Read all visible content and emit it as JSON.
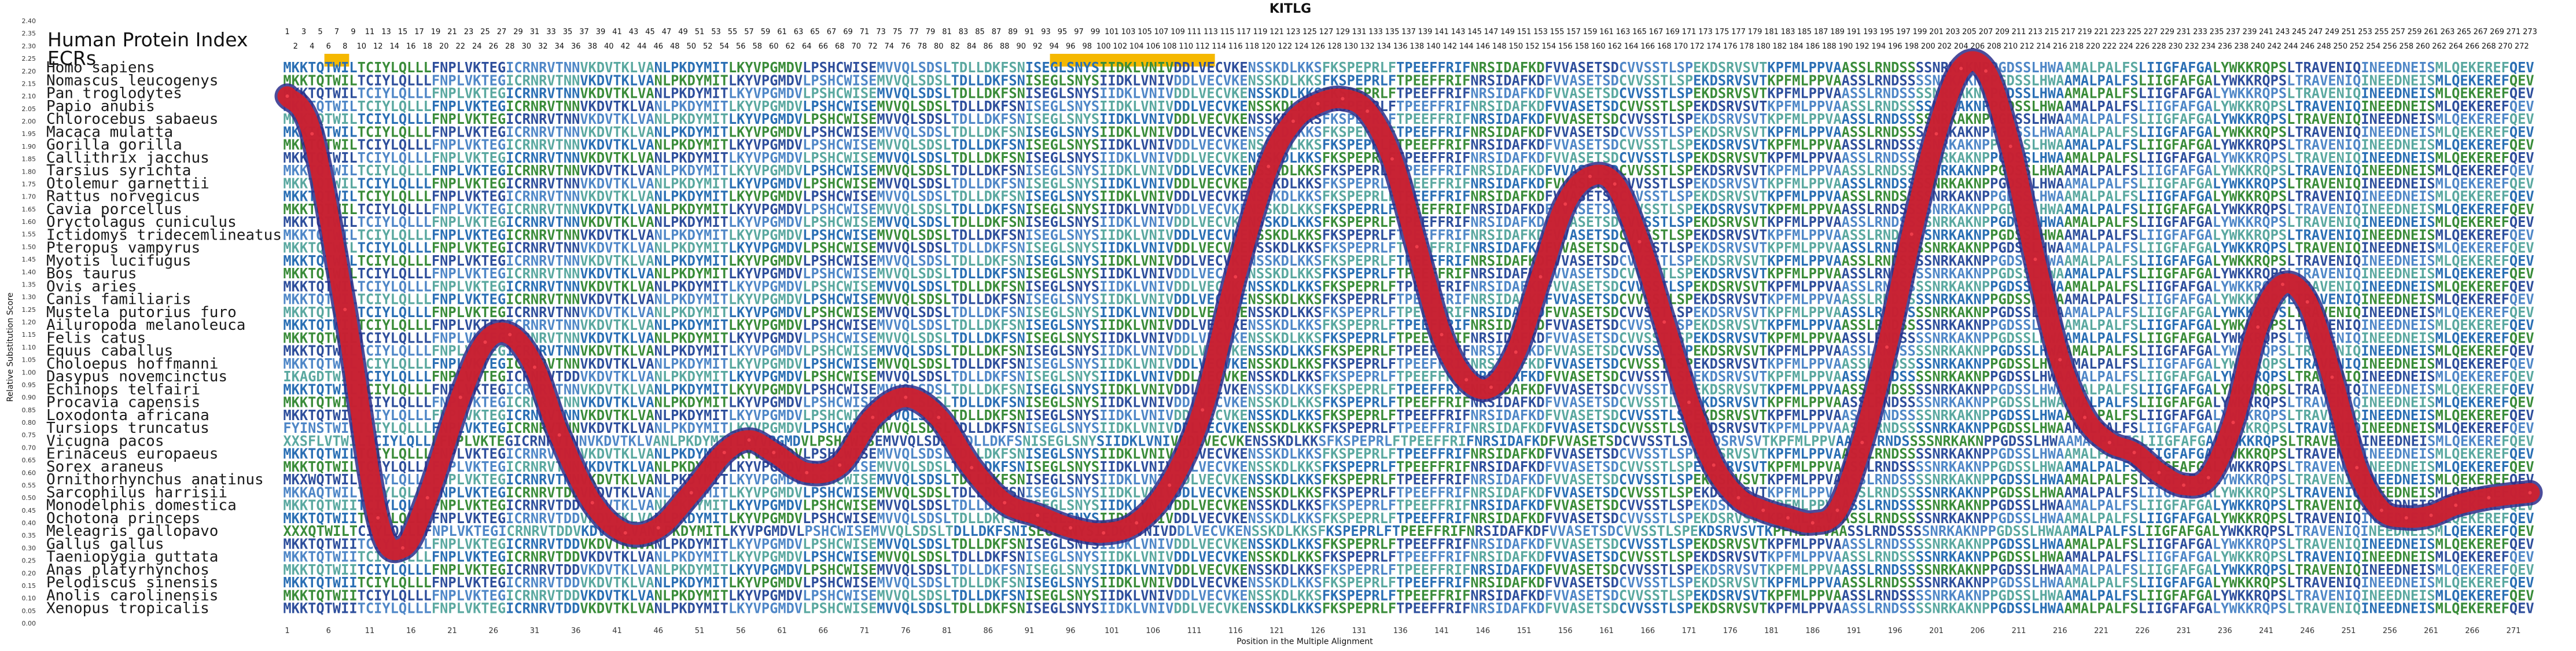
{
  "chart_data": {
    "type": "line",
    "title": "KITLG",
    "xlabel": "Position in the Multiple Alignment",
    "ylabel": "Relative Substitution Score",
    "ylim": [
      0.0,
      2.4
    ],
    "xlim": [
      1,
      273
    ],
    "ytick_step": 0.05,
    "xtick_step": 5,
    "grid": false,
    "legend": null,
    "header_labels": {
      "index": "Human Protein Index",
      "ecrs": "ECRs"
    },
    "ecr_ranges": [
      [
        6,
        8
      ],
      [
        94,
        113
      ]
    ],
    "ecr_color": "#f5b800",
    "line_color": "#d21f2b",
    "line_edge_color": "#2b2e8a",
    "series": [
      {
        "x": [
          1,
          4,
          8,
          12,
          15,
          18,
          22,
          25,
          28,
          31,
          34,
          38,
          42,
          46,
          50,
          54,
          57,
          60,
          64,
          68,
          72,
          76,
          80,
          84,
          88,
          92,
          96,
          100,
          104,
          108,
          112,
          116,
          120,
          123,
          126,
          129,
          132,
          135,
          138,
          141,
          144,
          147,
          150,
          153,
          156,
          159,
          162,
          165,
          168,
          171,
          174,
          177,
          180,
          183,
          186,
          189,
          192,
          195,
          198,
          201,
          204,
          207,
          210,
          213,
          216,
          219,
          222,
          225,
          228,
          231,
          234,
          237,
          240,
          243,
          246,
          249,
          252,
          255,
          258,
          261,
          264,
          268,
          273
        ],
        "values": [
          2.1,
          1.95,
          1.25,
          0.42,
          0.3,
          0.5,
          0.9,
          1.12,
          1.15,
          1.02,
          0.75,
          0.48,
          0.36,
          0.38,
          0.52,
          0.68,
          0.73,
          0.68,
          0.6,
          0.63,
          0.82,
          0.9,
          0.82,
          0.62,
          0.48,
          0.43,
          0.38,
          0.36,
          0.4,
          0.55,
          0.85,
          1.38,
          1.82,
          2.0,
          2.07,
          2.09,
          2.04,
          1.85,
          1.5,
          1.15,
          0.97,
          0.94,
          1.08,
          1.38,
          1.67,
          1.78,
          1.75,
          1.52,
          1.2,
          0.88,
          0.63,
          0.5,
          0.45,
          0.42,
          0.4,
          0.45,
          0.72,
          1.1,
          1.55,
          1.95,
          2.21,
          2.2,
          1.9,
          1.45,
          1.05,
          0.82,
          0.72,
          0.68,
          0.6,
          0.55,
          0.58,
          0.8,
          1.18,
          1.35,
          1.28,
          0.98,
          0.62,
          0.45,
          0.42,
          0.43,
          0.47,
          0.5,
          0.52
        ]
      }
    ]
  },
  "species": [
    "Homo sapiens",
    "Nomascus leucogenys",
    "Pan troglodytes",
    "Papio anubis",
    "Chlorocebus sabaeus",
    "Macaca mulatta",
    "Gorilla gorilla",
    "Callithrix jacchus",
    "Tarsius syrichta",
    "Otolemur garnettii",
    "Rattus norvegicus",
    "Cavia porcellus",
    "Oryctolagus cuniculus",
    "Ictidomys tridecemlineatus",
    "Pteropus vampyrus",
    "Myotis lucifugus",
    "Bos taurus",
    "Ovis aries",
    "Canis familiaris",
    "Mustela putorius furo",
    "Ailuropoda melanoleuca",
    "Felis catus",
    "Equus caballus",
    "Choloepus hoffmanni",
    "Dasypus novemcinctus",
    "Echinops telfairi",
    "Procavia capensis",
    "Loxodonta africana",
    "Tursiops truncatus",
    "Vicugna pacos",
    "Erinaceus europaeus",
    "Sorex araneus",
    "Ornithorhynchus anatinus",
    "Sarcophilus harrisii",
    "Monodelphis domestica",
    "Ochotona princeps",
    "Meleagris gallopavo",
    "Gallus gallus",
    "Taeniopygia guttata",
    "Anas platyrhynchos",
    "Pelodiscus sinensis",
    "Anolis carolinensis",
    "Xenopus tropicalis"
  ],
  "alignment": [
    "MKKTQTWILTCIYLQLLLFNPLVKTEGICRNRVTNNVKDVTKLVANLPKDYMITLKYVPGMDVLPSHCWISEMVVQLSDSLTDLLDKFSNISEGLSNYSIIDKLVNIVDDLVECVKENSSKDLKKSFKSPEPRLFTPEEFFRIFNRSIDAFKDFVVASETSDCVVSSTLSPEKDSRVSVTKPFMLPPVAASSLRNDSSSSNRKAKNPPGDSSLHWAAMALPALFSLIIGFAFGALYWKKRQPSLTRAVENIQINEEDNEISMLQEKEREFQEV",
    "MKKTQTWILTCIYLQLLLFNPLVKTEGICRNRVTNNVKDVTKLVANLPKDYMITLKYVPGMDVLPSHCWISEMVVQLSDSLTDLLDKFSNISEGLSNYSIIDKLVNIVDDLVECVKENSSKDLKKSFKSPEPRLFTPEEFFRIFNRSIDAFKDFVVASETSDCVVSSTLSPEKDSRVSVTKPFMLPPVAASSLRNDSSSSNRKAKNPPGDSSLHWAAMALPALFSLIIGFAFGALYWKKRQPSLTRAVENIQINEEDNEISMLQEKEREFQEV",
    "MKKTQTWILTCIYLQLLLFNPLVKTEGICRNRVTNNVKDVTKLVANLPKDYMITLKYVPGMDVLPSHCWISEMVVQLSDSLTDLLDKFSNISEGLSNYSIIDKLVNIVDDLVECVKENSSKDLKKSFKSPEPRLFTPEEFFRIFNRSIDAFKDFVVASETSDCVVSSTLSPEKDSRVSVTKPFMLPPVAASSLRNDSSSSNRKAKNPPGDSSLHWAAMALPALFSLIIGFAFGALYWKKRQPSLTRAVENIQINEEDNEISMLQEKEREFQEV",
    "MKKTQTWILTCIYLQLLLFNPLVKTEGICRNRVTNNVKDVTKLVANLPKDYMITLKYVPGMDVLPSHCWISEMVVQLSDSLTDLLDKFSNISEGLSNYSIIDKLVNIVDDLVECVKENSSKDLKKSFKSPEPRLFTPEEFFRIFNRSIDAFKDFVVASETSDCVVSSTLSPEKDSRVSVTKPFMLPPVAASSLRNDSSSSNRKAKNPPGDSSLHWAAMALPALFSLIIGFAFGALYWKKRQPSLTRAVENIQINEEDNEISMLQEKEREFQEV",
    "MKKTQTWILTCIYLQLLLFNPLVKTEGICRNRVTNNVKDVTKLVANLPKDYMITLKYVPGMDVLPSHCWISEMVVQLSDSLTDLLDKFSNISEGLSNYSIIDKLVNIVDDLVECVKENSSKDLKKSFKSPEPRLFTPEEFFRIFNRSIDAFKDFVVASETSDCVVSSTLSPEKDSRVSVTKPFMLPPVAASSLRNDSSSSNRKAKNPPGDSSLHWAAMALPALFSLIIGFAFGALYWKKRQPSLTRAVENIQINEEDNEISMLQEKEREFQEV",
    "MKKTQTWILTCIYLQLLLFNPLVKTEGICRNRVTNNVKDVTKLVANLPKDYMITLKYVPGMDVLPSHCWISEMVVQLSDSLTDLLDKFSNISEGLSNYSIIDKLVNIVDDLVECVKENSSKDLKKSFKSPEPRLFTPEEFFRIFNRSIDAFKDFVVASETSDCVVSSTLSPEKDSRVSVTKPFMLPPVAASSLRNDSSSSNRKAKNPPGDSSLHWAAMALPALFSLIIGFAFGALYWKKRQPSLTRAVENIQINEEDNEISMLQEKEREFQEV",
    "MKKTQTWILTCIYLQLLLFNPLVKTEGICRNRVTNNVKDVTKLVANLPKDYMITLKYVPGMDVLPSHCWISEMVVQLSDSLTDLLDKFSNISEGLSNYSIIDKLVNIVDDLVECVKENSSKDLKKSFKSPEPRLFTPEEFFRIFNRSIDAFKDFVVASETSDCVVSSTLSPEKDSRVSVTKPFMLPPVAASSLRNDSSSSNRKAKNPPGDSSLHWAAMALPALFSLIIGFAFGALYWKKRQPSLTRAVENIQINEEDNEISMLQEKEREFQEV",
    "MKKTQTWILTCIYLQLLLFNPLVKTEGICRNRVTNNVKDVTKLVANLPKDYMITLKYVPGMDVLPSHCWISEMVVQLSDSLTDLLDKFSNISEGLSNYSIIDKLVNIVDDLVECVKENSSKDLKKSFKSPEPRLFTPEEFFRIFNRSIDAFKDFVVASETSDCVVSSTLSPEKDSRVSVTKPFMLPPVAASSLRNDSSSSNRKAKNPPGDSSLHWAAMALPALFSLIIGFAFGALYWKKRQPSLTRAVENIQINEEDNEISMLQEKEREFQEV",
    "MKKTQTWILTCIYLQLLLFNPLVKTEGICRNRVTNNVKDVTKLVANLPKDYMITLKYVPGMDVLPSHCWISEMVVQLSDSLTDLLDKFSNISEGLSNYSIIDKLVNIVDDLVECVKENSSKDLKKSFKSPEPRLFTPEEFFRIFNRSIDAFKDFVVASETSDCVVSSTLSPEKDSRVSVTKPFMLPPVAASSLRNDSSSSNRKAKNPPGDSSLHWAAMALPALFSLIIGFAFGALYWKKRQPSLTRAVENIQINEEDNEISMLQEKEREFQEV",
    "MKKTQTWILTCIYLQLLLFNPLVKTEGICRNRVTNNVKDVTKLVANLPKDYMITLKYVPGMDVLPSHCWISEMVVQLSDSLTDLLDKFSNISEGLSNYSIIDKLVNIVDDLVECVKENSSKDLKKSFKSPEPRLFTPEEFFRIFNRSIDAFKDFVVASETSDCVVSSTLSPEKDSRVSVTKPFMLPPVAASSLRNDSSSSNRKAKNPPGDSSLHWAAMALPALFSLIIGFAFGALYWKKRQPSLTRAVENIQINEEDNEISMLQEKEREFQEV",
    "MKKTQTWILTCIYLQLLLFNPLVKTEGICRNRVTNNVKDVTKLVANLPKDYMITLKYVPGMDVLPSHCWISEMVVQLSDSLTDLLDKFSNISEGLSNYSIIDKLVNIVDDLVECVKENSSKDLKKSFKSPEPRLFTPEEFFRIFNRSIDAFKDFVVASETSDCVVSSTLSPEKDSRVSVTKPFMLPPVAASSLRNDSSSSNRKAKNPPGDSSLHWAAMALPALFSLIIGFAFGALYWKKRQPSLTRAVENIQINEEDNEISMLQEKEREFQEV",
    "MKKTQTWILTCIYLQLLLFNPLVKTEGICRNRVTNNVKDVTKLVANLPKDYMITLKYVPGMDVLPSHCWISEMVVQLSDSLTDLLDKFSNISEGLSNYSIIDKLVNIVDDLVECVKENSSKDLKKSFKSPEPRLFTPEEFFRIFNRSIDAFKDFVVASETSDCVVSSTLSPEKDSRVSVTKPFMLPPVAASSLRNDSSSSNRKAKNPPGDSSLHWAAMALPALFSLIIGFAFGALYWKKRQPSLTRAVENIQINEEDNEISMLQEKEREFQEV",
    "MKKTQTWILTCIYLQLLLFNPLVKTEGICRNRVTNNVKDVTKLVANLPKDYMITLKYVPGMDVLPSHCWISEMVVQLSDSLTDLLDKFSNISEGLSNYSIIDKLVNIVDDLVECVKENSSKDLKKSFKSPEPRLFTPEEFFRIFNRSIDAFKDFVVASETSDCVVSSTLSPEKDSRVSVTKPFMLPPVAASSLRNDSSSSNRKAKNPPGDSSLHWAAMALPALFSLIIGFAFGALYWKKRQPSLTRAVENIQINEEDNEISMLQEKEREFQEV",
    "MKKTQTWILTCIYLQLLLFNPLVKTEGICRNRVTNNVKDVTKLVANLPKDYMITLKYVPGMDVLPSHCWISEMVVQLSDSLTDLLDKFSNISEGLSNYSIIDKLVNIVDDLVECVKENSSKDLKKSFKSPEPRLFTPEEFFRIFNRSIDAFKDFVVASETSDCVVSSTLSPEKDSRVSVTKPFMLPPVAASSLRNDSSSSNRKAKNPPGDSSLHWAAMALPALFSLIIGFAFGALYWKKRQPSLTRAVENIQINEEDNEISMLQEKEREFQEV",
    "MKKTQTWILTCIYLQLLLFNPLVKTEGICRNRVTNNVKDVTKLVANLPKDYMITLKYVPGMDVLPSHCWISEMVVQLSDSLTDLLDKFSNISEGLSNYSIIDKLVNIVDDLVECVKENSSKDLKKSFKSPEPRLFTPEEFFRIFNRSIDAFKDFVVASETSDCVVSSTLSPEKDSRVSVTKPFMLPPVAASSLRNDSSSSNRKAKNPPGDSSLHWAAMALPALFSLIIGFAFGALYWKKRQPSLTRAVENIQINEEDNEISMLQEKEREFQEV",
    "MKKTQTWILTCIYLQLLLFNPLVKTEGICRNRVTNNVKDVTKLVANLPKDYMITLKYVPGMDVLPSHCWISEMVVQLSDSLTDLLDKFSNISEGLSNYSIIDKLVNIVDDLVECVKENSSKDLKKSFKSPEPRLFTPEEFFRIFNRSIDAFKDFVVASETSDCVVSSTLSPEKDSRVSVTKPFMLPPVAASSLRNDSSSSNRKAKNPPGDSSLHWAAMALPALFSLIIGFAFGALYWKKRQPSLTRAVENIQINEEDNEISMLQEKEREFQEV",
    "MKKTQTWILTCIYLQLLLFNPLVKTEGICRNRVTNNVKDVTKLVANLPKDYMITLKYVPGMDVLPSHCWISEMVVQLSDSLTDLLDKFSNISEGLSNYSIIDKLVNIVDDLVECVKENSSKDLKKSFKSPEPRLFTPEEFFRIFNRSIDAFKDFVVASETSDCVVSSTLSPEKDSRVSVTKPFMLPPVAASSLRNDSSSSNRKAKNPPGDSSLHWAAMALPALFSLIIGFAFGALYWKKRQPSLTRAVENIQINEEDNEISMLQEKEREFQEV",
    "MKKTQTWILTCIYLQLLLFNPLVKTEGICRNRVTNNVKDVTKLVANLPKDYMITLKYVPGMDVLPSHCWISEMVVQLSDSLTDLLDKFSNISEGLSNYSIIDKLVNIVDDLVECVKENSSKDLKKSFKSPEPRLFTPEEFFRIFNRSIDAFKDFVVASETSDCVVSSTLSPEKDSRVSVTKPFMLPPVAASSLRNDSSSSNRKAKNPPGDSSLHWAAMALPALFSLIIGFAFGALYWKKRQPSLTRAVENIQINEEDNEISMLQEKEREFQEV",
    "MKKTQTWILTCIYLQLLLFNPLVKTEGICRNRVTNNVKDVTKLVANLPKDYMITLKYVPGMDVLPSHCWISEMVVQLSDSLTDLLDKFSNISEGLSNYSIIDKLVNIVDDLVECVKENSSKDLKKSFKSPEPRLFTPEEFFRIFNRSIDAFKDFVVASETSDCVVSSTLSPEKDSRVSVTKPFMLPPVAASSLRNDSSSSNRKAKNPPGDSSLHWAAMALPALFSLIIGFAFGALYWKKRQPSLTRAVENIQINEEDNEISMLQEKEREFQEV",
    "MKKTQTWILTCIYLQLLLFNPLVKTEGICRNRVTNNVKDVTKLVANLPKDYMITLKYVPGMDVLPSHCWISEMVVQLSDSLTDLLDKFSNISEGLSNYSIIDKLVNIVDDLVECVKENSSKDLKKSFKSPEPRLFTPEEFFRIFNRSIDAFKDFVVASETSDCVVSSTLSPEKDSRVSVTKPFMLPPVAASSLRNDSSSSNRKAKNPPGDSSLHWAAMALPALFSLIIGFAFGALYWKKRQPSLTRAVENIQINEEDNEISMLQEKEREFQEV",
    "MKKTQTWILTCIYLQLLLFNPLVKTEGICRNRVTNNVKDVTKLVANLPKDYMITLKYVPGMDVLPSHCWISEMVVQLSDSLTDLLDKFSNISEGLSNYSIIDKLVNIVDDLVECVKENSSKDLKKSFKSPEPRLFTPEEFFRIFNRSIDAFKDFVVASETSDCVVSSTLSPEKDSRVSVTKPFMLPPVAASSLRNDSSSSNRKAKNPPGDSSLHWAAMALPALFSLIIGFAFGALYWKKRQPSLTRAVENIQINEEDNEISMLQEKEREFQEV",
    "MKKTQTWILTCIYLQLLLFNPLVKTEGICRNRVTNNVKDVTKLVANLPKDYMITLKYVPGMDVLPSHCWISEMVVQLSDSLTDLLDKFSNISEGLSNYSIIDKLVNIVDDLVECVKENSSKDLKKSFKSPEPRLFTPEEFFRIFNRSIDAFKDFVVASETSDCVVSSTLSPEKDSRVSVTKPFMLPPVAASSLRNDSSSSNRKAKNPPGDSSLHWAAMALPALFSLIIGFAFGALYWKKRQPSLTRAVENIQINEEDNEISMLQEKEREFQEV",
    "MKKTQTWILTCIYLQLLLFNPLVKTEGICRNRVTNNVKDVTKLVANLPKDYMITLKYVPGMDVLPSHCWISEMVVQLSDSLTDLLDKFSNISEGLSNYSIIDKLVNIVDDLVECVKENSSKDLKKSFKSPEPRLFTPEEFFRIFNRSIDAFKDFVVASETSDCVVSSTLSPEKDSRVSVTKPFMLPPVAASSLRNDSSSSNRKAKNPPGDSSLHWAAMALPALFSLIIGFAFGALYWKKRQPSLTRAVENIQINEEDNEISMLQEKEREFQEV",
    "MKKTQTWILTCIYLQLLLFNPLVKTEGICRNRVTNNVKDVTKLVANLPKDYMITLKYVPGMDVLPSHCWISEMVVQLSDSLTDLLDKFSNISEGLSNYSIIDKLVNIVDDLVECVKENSSKDLKKSFKSPEPRLFTPEEFFRIFNRSIDAFKDFVVASETSDCVVSSTLSPEKDSRVSVTKPFMLPPVAASSLRNDSSSSNRKAKNPPGDSSLHWAAMALPALFSLIIGFAFGALYWKKRQPSLTRAVENIQINEEDNEISMLQEKEREFQEV",
    "IKAGDTWILTCIYLQLLLFNPLVKTEGICRNRVTDDVKDVTKLVANLPKDYMITLKYVPGMDVLPSHCWISEMVVQLSDSLTDLLDKFSNISEGLSNYSIIDKLVNIVDDLVECVKENSSKDLKKSFKSPEPRLFTPEEFFRIFNRSIDAFKDFVVASETSDCVVSSTLSPEKDSRVSVTKPFMLPPVAASSLRNDSSSSNRKAKNPPGDSSLHWAAMALPALFSLIIGFAFGALYWKKRQPSLTRAVENIQINEEDNEISMLQEKEREFQEV",
    "MKKTQTWILTCIYLQLLLFNPLVKTEGICRNRVTNNVKDVTKLVANLPKDYMITLKYVPGMDVLPSHCWISEMVVQLSDSLTDLLDKFSNISEGLSNYSIIDKLVNIVDDLVECVKENSSKDLKKSFKSPEPRLFTPEEFFRIFNRSIDAFKDFVVASETSDCVVSSTLSPEKDSRVSVTKPFMLPPVAASSLRNDSSSSNRKAKNPPGDSSLHWAAMALPALFSLIIGFAFGALYWKKRQPSLTRAVENIQINEEDNEISMLQEKEREFQEV",
    "MKKTQTWILTCIYLQLLLFNPLVKTEGICRNRVTNNVKDVTKLVANLPKDYMITLKYVPGMDVLPSHCWISEMVVQLSDSLTDLLDKFSNISEGLSNYSIIDKLVNIVDDLVECVKENSSKDLKKSFKSPEPRLFTPEEFFRIFNRSIDAFKDFVVASETSDCVVSSTLSPEKDSRVSVTKPFMLPPVAASSLRNDSSSSNRKAKNPPGDSSLHWAAMALPALFSLIIGFAFGALYWKKRQPSLTRAVENIQINEEDNEISMLQEKEREFQEV",
    "MKKTQTWILTCIYLQLLLFNPLVKTEGICRNRVTNNVKDVTKLVANLPKDYMITLKYVPGMDVLPSHCWISEMVVQLSDSLTDLLDKFSNISEGLSNYSIIDKLVNIVDDLVECVKENSSKDLKKSFKSPEPRLFTPEEFFRIFNRSIDAFKDFVVASETSDCVVSSTLSPEKDSRVSVTKPFMLPPVAASSLRNDSSSSNRKAKNPPGDSSLHWAAMALPALFSLIIGFAFGALYWKKRQPSLTRAVENIQINEEDNEISMLQEKEREFQEV",
    "FYINSTWILTCIYLQLLLFNPLVKTEGICRNRVTNNVKDVTKLVANLPKDYMITLKYVPGMDVLPSHCWISEMVVQLSDSLTDLLDKFSNISEGLSNYSIIDKLVNIVDDLVECVKENSSKDLKKSFKSPEPRLFTPEEFFRIFNRSIDAFKDFVVASETSDCVVSSTLSPEKDSRVSVTKPFMLPPVAASSLRNDSSSSNRKAKNPPGDSSLHWAAMALPALFSLIIGFAFGALYWKKRQPSLTRAVENIQINEEDNEISMLQEKEREFQEV",
    "XXSFLVTWILTCIYLQLLLFNPLVKTEGICRNRVTNNVKDVTKLVANLPKDYMITLKYVPGMDVLPSHCWISEMVVQLSDSLTDLLDKFSNISEGLSNYSIIDKLVNIVDDLVECVKENSSKDLKKSFKSPEPRLFTPEEFFRIFNRSIDAFKDFVVASETSDCVVSSTLSPEKDSRVSVTKPFMLPPVAASSLRNDSSSSNRKAKNPPGDSSLHWAAMALPALFSLIIGFAFGALYWKKRQPSLTRAVENIQINEEDNEISMLQEKEREFQEV",
    "MKKTQTWILTCIYLQLLLFNPLVKTEGICRNRVTNNVKDVTKLVANLPKDYMITLKYVPGMDVLPSHCWISEMVVQLSDSLTDLLDKFSNISEGLSNYSIIDKLVNIVDDLVECVKENSSKDLKKSFKSPEPRLFTPEEFFRIFNRSIDAFKDFVVASETSDCVVSSTLSPEKDSRVSVTKPFMLPPVAASSLRNDSSSSNRKAKNPPGDSSLHWAAMALPALFSLIIGFAFGALYWKKRQPSLTRAVENIQINEEDNEISMLQEKEREFQEV",
    "MKKTQTWILTCIYLQLLLFNPLVKTEGICRNRVTNNVKDVTKLVANLPKDYMITLKYVPGMDVLPSHCWISEMVVQLSDSLTDLLDKFSNISEGLSNYSIIDKLVNIVDDLVECVKENSSKDLKKSFKSPEPRLFTPEEFFRIFNRSIDAFKDFVVASETSDCVVSSTLSPEKDSRVSVTKPFMLPPVAASSLRNDSSSSNRKAKNPPGDSSLHWAAMALPALFSLIIGFAFGALYWKKRQPSLTRAVENIQINEEDNEISMLQEKEREFQEV",
    "MKXWQTWILTCIYLQLLLFNPLVKTEGICRNRVTNNVKDVTKLVANLPKDYMITLKYVPGMDVLPSHCWISEMVVQLSDSLTDLLDKFSNISEGLSNYSIIDKLVNIVDDLVECVKENSSKDLKKSFKSPEPRLFTPEEFFRIFNRSIDAFKDFVVASETSDCVVSSTLSPEKDSRVSVTKPFMLPPVAASSLRNDSSSSNRKAKNPPGDSSLHWAAMALPALFSLIIGFAFGALYWKKRQPSLTRAVENIQINEEDNEISMLQEKEREFQEV",
    "MKKAQTWILTCIYLQLLLFNPLVKTEGICRNRVTDDVKDVTKLVANLPKDYMITLKYVPGMDVLPSHCWISEMVVQLSDSLTDLLDKFSNISEGLSNYSIIDKLVNIVDDLVECVKENSSKDLKKSFKSPEPRLFTPEEFFRIFNRSIDAFKDFVVASETSDCVVSSTLSPEKDSRVSVTKPFMLPPVAASSLRNDSSSSNRKAKNPPGDSSLHWAAMALPALFSLIIGFAFGALYWKKRQPSLTRAVENIQINEEDNEISMLQEKEREFQEV",
    "MKKTQTWIITCIYLQLLLFNPLVKTEGICRNRVTDDVKDVTKLVANLPKDYMITLKYVPGMDVLPSHCWISEMVVQLSDSLTDLLDKFSNISEGLSNYSIIDKLVNIVDDLVECVKENSSKDLKKSFKSPEPRLFTPEEFFRIFNRSIDAFKDFVVASETSDCVVSSTLSPEKDSRVSVTKPFMLPPVAASSLRNDSSSSNRKAKNPPGDSSLHWAAMALPALFSLIIGFAFGALYWKKRQPSLTRAVENIQINEEDNEISMLQEKEREFQEV",
    "MKKTQTWIITCIYLQLLLFNPLVKTEGICRNRVTDDVKDVTKLVANLPKDYMITLKYVPGMDVLPSHCWISEMVVQLSDSLTDLLDKFSNISEGLSNYSIIDKLVNIVDDLVECVKENSSKDLKKSFKSPEPRLFTPEEFFRIFNRSIDAFKDFVVASETSDCVVSSTLSPEKDSRVSVTKPFMLPPVAASSLRNDSSSSNRKAKNPPGDSSLHWAAMALPALFSLIIGFAFGALYWKKRQPSLTRAVENIQINEEDNEISMLQEKEREFQEV",
    "XXXQTWILTCIYLQLLLFNPLVKTEGICRNRVTDDVKDVTKLVANLPKDYMITLKYVPGMDVLPSHCWISEMVVQLSDSLTDLLDKFSNISEGLSNYSIIDKLVNIVDDLVECVKENSSKDLKKSFKSPEPRLFTPEEFFRIFNRSIDAFKDFVVASETSDCVVSSTLSPEKDSRVSVTKPFMLPPVAASSLRNDSSSSNRKAKNPPGDSSLHWAAMALPALFSLIIGFAFGALYWKKRQPSLTRAVENIQINEEDNEISMLQEKEREFQEV",
    "MKKTQTWIITCIYLQLLLFNPLVKTEGICRNRVTDDVKDVTKLVANLPKDYMITLKYVPGMDVLPSHCWISEMVVQLSDSLTDLLDKFSNISEGLSNYSIIDKLVNIVDDLVECVKENSSKDLKKSFKSPEPRLFTPEEFFRIFNRSIDAFKDFVVASETSDCVVSSTLSPEKDSRVSVTKPFMLPPVAASSLRNDSSSSNRKAKNPPGDSSLHWAAMALPALFSLIIGFAFGALYWKKRQPSLTRAVENIQINEEDNEISMLQEKEREFQEV",
    "MKKTQTWIITCIYLQLLLFNPLVKTEGICRNRVTDDVKDVTKLVANLPKDYMITLKYVPGMDVLPSHCWISEMVVQLSDSLTDLLDKFSNISEGLSNYSIIDKLVNIVDDLVECVKENSSKDLKKSFKSPEPRLFTPEEFFRIFNRSIDAFKDFVVASETSDCVVSSTLSPEKDSRVSVTKPFMLPPVAASSLRNDSSSSNRKAKNPPGDSSLHWAAMALPALFSLIIGFAFGALYWKKRQPSLTRAVENIQINEEDNEISMLQEKEREFQEV",
    "MKKTQTWIITCIYLQLLLFNPLVKTEGICRNRVTDDVKDVTKLVANLPKDYMITLKYVPGMDVLPSHCWISEMVVQLSDSLTDLLDKFSNISEGLSNYSIIDKLVNIVDDLVECVKENSSKDLKKSFKSPEPRLFTPEEFFRIFNRSIDAFKDFVVASETSDCVVSSTLSPEKDSRVSVTKPFMLPPVAASSLRNDSSSSNRKAKNPPGDSSLHWAAMALPALFSLIIGFAFGALYWKKRQPSLTRAVENIQINEEDNEISMLQEKEREFQEV",
    "MKKTQTWIITCIYLQLLLFNPLVKTEGICRNRVTDDVKDVTKLVANLPKDYMITLKYVPGMDVLPSHCWISEMVVQLSDSLTDLLDKFSNISEGLSNYSIIDKLVNIVDDLVECVKENSSKDLKKSFKSPEPRLFTPEEFFRIFNRSIDAFKDFVVASETSDCVVSSTLSPEKDSRVSVTKPFMLPPVAASSLRNDSSSSNRKAKNPPGDSSLHWAAMALPALFSLIIGFAFGALYWKKRQPSLTRAVENIQINEEDNEISMLQEKEREFQEV",
    "MKKTQTWIITCIYLQLLLFNPLVKTEGICRNRVTDDVKDVTKLVANLPKDYMITLKYVPGMDVLPSHCWISEMVVQLSDSLTDLLDKFSNISEGLSNYSIIDKLVNIVDDLVECVKENSSKDLKKSFKSPEPRLFTPEEFFRIFNRSIDAFKDFVVASETSDCVVSSTLSPEKDSRVSVTKPFMLPPVAASSLRNDSSSSNRKAKNPPGDSSLHWAAMALPALFSLIIGFAFGALYWKKRQPSLTRAVENIQINEEDNEISMLQEKEREFQEV",
    "MKKTQTWIITCIYLQLLLFNPLVKTEGICRNRVTDDVKDVTKLVANLPKDYMITLKYVPGMDVLPSHCWISEMVVQLSDSLTDLLDKFSNISEGLSNYSIIDKLVNIVDDLVECVKENSSKDLKKSFKSPEPRLFTPEEFFRIFNRSIDAFKDFVVASETSDCVVSSTLSPEKDSRVSVTKPFMLPPVAASSLRNDSSSSNRKAKNPPGDSSLHWAAMALPALFSLIIGFAFGALYWKKRQPSLTRAVENIQINEEDNEISMLQEKEREFQEV"
  ]
}
